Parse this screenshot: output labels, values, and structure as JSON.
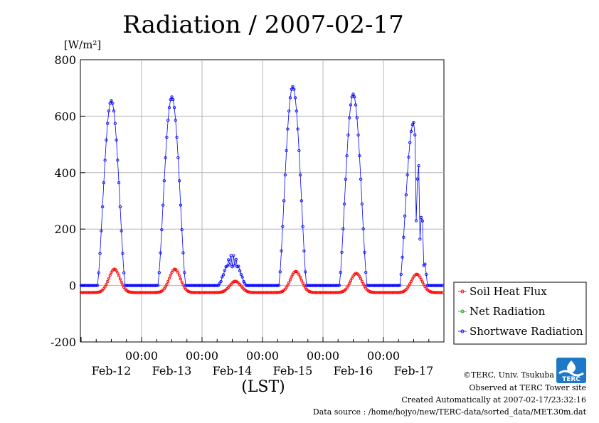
{
  "chart_data": {
    "type": "line",
    "title": "Radiation / 2007-02-17",
    "ylabel_unit": "[W/m²]",
    "xlabel": "(LST)",
    "ylim": [
      -200,
      800
    ],
    "yticks": [
      "800",
      "600",
      "400",
      "200",
      "0",
      "-200"
    ],
    "ytick_values": [
      800,
      600,
      400,
      200,
      0,
      -200
    ],
    "xlim_days": [
      0,
      6
    ],
    "x_tick_time": "00:00",
    "x_categories": [
      "Feb-12",
      "Feb-13",
      "Feb-14",
      "Feb-15",
      "Feb-16",
      "Feb-17"
    ],
    "grid": true,
    "legend_position": "right",
    "series": [
      {
        "name": "Soil Heat Flux",
        "color": "#ff0000",
        "marker": "circle",
        "shape": "soil",
        "peaks": [
          58,
          58,
          15,
          50,
          43,
          40
        ],
        "baseline": -25
      },
      {
        "name": "Net Radiation",
        "color": "#00b000",
        "marker": "circle",
        "shape": "none"
      },
      {
        "name": "Shortwave Radiation",
        "color": "#0000ff",
        "marker": "circle",
        "shape": "shortwave",
        "peaks": [
          655,
          668,
          108,
          705,
          678,
          578
        ],
        "baseline": 0
      }
    ]
  },
  "footer": {
    "copyright": "©TERC, Univ. Tsukuba",
    "observed": "Observed at TERC Tower site",
    "created": "Created Automatically at 2007-02-17/23:32:16",
    "source": "Data source : /home/hojyo/new/TERC-data/sorted_data/MET.30m.dat"
  },
  "logo": {
    "label": "TERC",
    "color": "#1e78c8"
  }
}
